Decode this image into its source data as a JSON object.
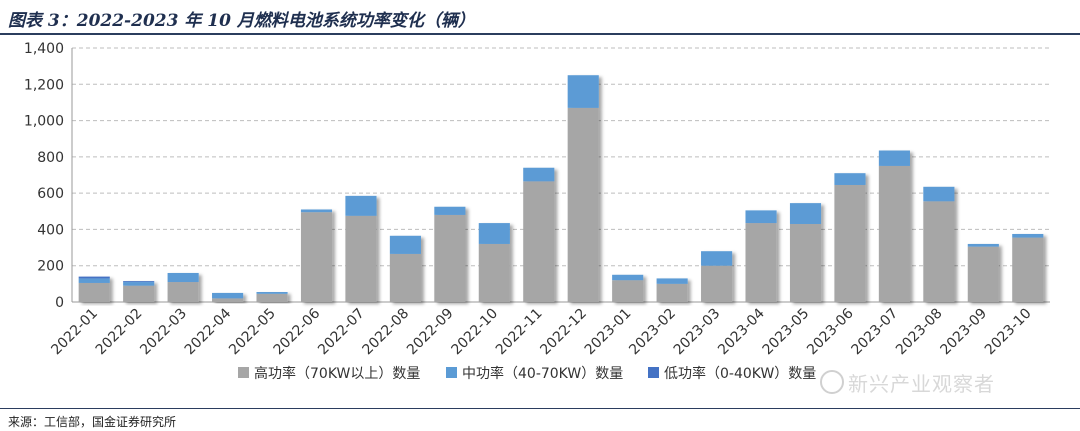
{
  "header": {
    "title": "图表 3：2022-2023 年 10 月燃料电池系统功率变化（辆）"
  },
  "footer": {
    "source": "来源：工信部，国金证券研究所"
  },
  "watermark": {
    "text": "新兴产业观察者",
    "icon": "wechat-icon"
  },
  "chart_data": {
    "type": "bar",
    "stacked": true,
    "categories": [
      "2022-01",
      "2022-02",
      "2022-03",
      "2022-04",
      "2022-05",
      "2022-06",
      "2022-07",
      "2022-08",
      "2022-09",
      "2022-10",
      "2022-11",
      "2022-12",
      "2023-01",
      "2023-02",
      "2023-03",
      "2023-04",
      "2023-05",
      "2023-06",
      "2023-07",
      "2023-08",
      "2023-09",
      "2023-10"
    ],
    "series": [
      {
        "name": "高功率（70KW以上）数量",
        "color": "#a6a6a6",
        "values": [
          105,
          90,
          110,
          20,
          45,
          495,
          475,
          265,
          480,
          320,
          665,
          1070,
          120,
          100,
          200,
          435,
          430,
          645,
          750,
          555,
          305,
          355
        ]
      },
      {
        "name": "中功率（40-70KW）数量",
        "color": "#5b9bd5",
        "values": [
          25,
          20,
          50,
          30,
          10,
          15,
          110,
          100,
          45,
          115,
          75,
          180,
          30,
          30,
          80,
          70,
          115,
          65,
          85,
          80,
          15,
          20
        ]
      },
      {
        "name": "低功率（0-40KW）数量",
        "color": "#4472c4",
        "values": [
          10,
          5,
          0,
          0,
          0,
          0,
          0,
          0,
          0,
          0,
          0,
          0,
          0,
          0,
          0,
          0,
          0,
          0,
          0,
          0,
          0,
          0
        ]
      }
    ],
    "ylim": [
      0,
      1400
    ],
    "yticks": [
      0,
      200,
      400,
      600,
      800,
      1000,
      1200,
      1400
    ],
    "ytick_labels": [
      "0",
      "200",
      "400",
      "600",
      "800",
      "1,000",
      "1,200",
      "1,400"
    ],
    "grid": true,
    "legend": "bottom"
  }
}
